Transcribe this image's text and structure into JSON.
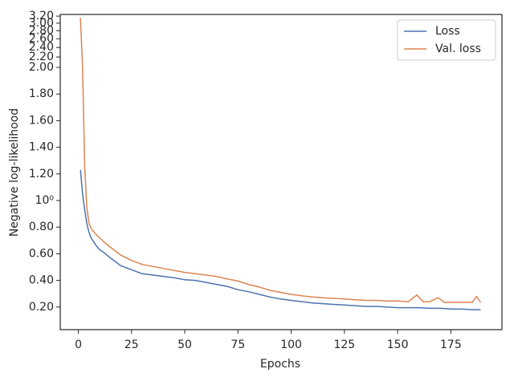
{
  "chart_data": {
    "type": "line",
    "x_label": "Epochs",
    "y_label": "Negative log-likelihood",
    "yscale": "symlog",
    "linthresh": 2,
    "xlim": [
      -8.5,
      199
    ],
    "xticks": [
      0,
      25,
      50,
      75,
      100,
      125,
      150,
      175
    ],
    "ylim": [
      0.03,
      3.25
    ],
    "yticks": [
      {
        "value": 0.2,
        "label": "0.20"
      },
      {
        "value": 0.4,
        "label": "0.40"
      },
      {
        "value": 0.6,
        "label": "0.60"
      },
      {
        "value": 0.8,
        "label": "0.80"
      },
      {
        "value": 1,
        "label": "10⁰"
      },
      {
        "value": 1.2,
        "label": "1.20"
      },
      {
        "value": 1.4,
        "label": "1.40"
      },
      {
        "value": 1.6,
        "label": "1.60"
      },
      {
        "value": 1.8,
        "label": "1.80"
      },
      {
        "value": 2,
        "label": "2.00"
      },
      {
        "value": 2.2,
        "label": "2.20"
      },
      {
        "value": 2.4,
        "label": "2.40"
      },
      {
        "value": 2.6,
        "label": "2.60"
      },
      {
        "value": 2.8,
        "label": "2.80"
      },
      {
        "value": 3,
        "label": "3.00"
      },
      {
        "value": 3.2,
        "label": "3.20"
      }
    ],
    "legend": "upper right",
    "series": [
      {
        "name": "Loss",
        "color": "#4c72b0",
        "x": [
          1,
          2,
          3,
          4,
          5,
          6,
          8,
          10,
          12,
          15,
          20,
          25,
          30,
          35,
          40,
          45,
          50,
          55,
          60,
          65,
          70,
          75,
          80,
          85,
          90,
          95,
          100,
          105,
          110,
          115,
          120,
          125,
          130,
          135,
          140,
          145,
          150,
          155,
          160,
          165,
          170,
          175,
          180,
          185,
          189
        ],
        "values": [
          1.23,
          1.05,
          0.93,
          0.83,
          0.76,
          0.72,
          0.67,
          0.63,
          0.61,
          0.57,
          0.51,
          0.48,
          0.45,
          0.44,
          0.43,
          0.42,
          0.405,
          0.4,
          0.385,
          0.37,
          0.355,
          0.33,
          0.315,
          0.295,
          0.275,
          0.26,
          0.25,
          0.24,
          0.23,
          0.225,
          0.22,
          0.215,
          0.21,
          0.205,
          0.205,
          0.2,
          0.195,
          0.195,
          0.195,
          0.19,
          0.19,
          0.185,
          0.185,
          0.18,
          0.18
        ]
      },
      {
        "name": "Val. loss",
        "color": "#dd8452",
        "x": [
          1,
          2,
          3,
          4,
          5,
          6,
          8,
          10,
          12,
          15,
          20,
          25,
          30,
          35,
          40,
          45,
          50,
          55,
          60,
          65,
          70,
          75,
          80,
          85,
          90,
          95,
          100,
          105,
          110,
          115,
          120,
          125,
          130,
          135,
          140,
          145,
          150,
          155,
          159,
          162,
          165,
          169,
          172,
          175,
          180,
          185,
          187,
          189
        ],
        "values": [
          3.15,
          2.0,
          1.25,
          0.95,
          0.83,
          0.79,
          0.75,
          0.72,
          0.69,
          0.65,
          0.59,
          0.55,
          0.52,
          0.505,
          0.49,
          0.475,
          0.46,
          0.45,
          0.44,
          0.43,
          0.41,
          0.395,
          0.37,
          0.35,
          0.325,
          0.31,
          0.295,
          0.285,
          0.275,
          0.27,
          0.265,
          0.26,
          0.255,
          0.25,
          0.25,
          0.245,
          0.245,
          0.24,
          0.29,
          0.24,
          0.24,
          0.27,
          0.235,
          0.235,
          0.235,
          0.235,
          0.28,
          0.235
        ]
      }
    ]
  }
}
